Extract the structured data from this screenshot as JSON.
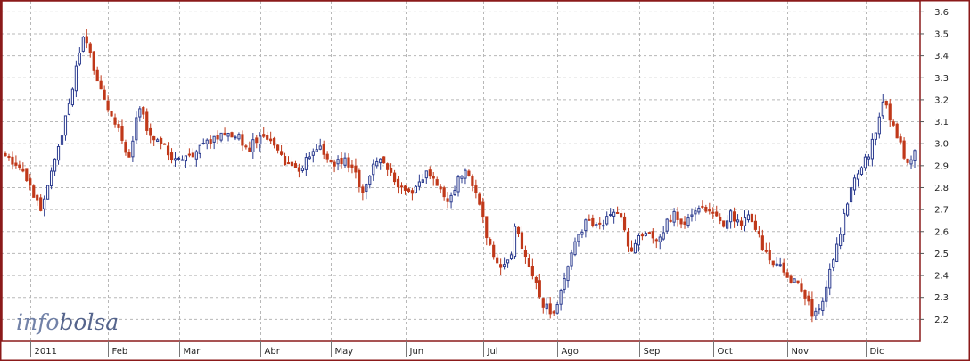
{
  "chart_data": {
    "type": "candlestick",
    "title": "",
    "xlabel": "",
    "ylabel": "",
    "ylim": [
      2.1,
      3.65
    ],
    "y_ticks": [
      2.2,
      2.3,
      2.4,
      2.5,
      2.6,
      2.7,
      2.8,
      2.9,
      3.0,
      3.1,
      3.2,
      3.3,
      3.4,
      3.5,
      3.6
    ],
    "y_tick_labels": [
      "2.2",
      "2.3",
      "2.4",
      "2.5",
      "2.6",
      "2.7",
      "2.8",
      "2.9",
      "3.0",
      "3.1",
      "3.2",
      "3.3",
      "3.4",
      "3.5",
      "3.6"
    ],
    "x_labels": [
      "2011",
      "Feb",
      "Mar",
      "Abr",
      "May",
      "Jun",
      "Jul",
      "Ago",
      "Sep",
      "Oct",
      "Nov",
      "Dic"
    ],
    "grid": true,
    "watermark": {
      "prefix": "info",
      "suffix": "bolsa"
    },
    "colors": {
      "up": "#2b3b8f",
      "down": "#c0391a",
      "frame": "#8b1a1a",
      "grid": "#b8b8b8"
    },
    "close_path": [
      [
        0,
        2.95
      ],
      [
        4,
        2.86
      ],
      [
        8,
        2.7
      ],
      [
        11,
        2.95
      ],
      [
        13,
        3.1
      ],
      [
        15,
        3.3
      ],
      [
        17,
        3.5
      ],
      [
        19,
        3.36
      ],
      [
        21,
        3.22
      ],
      [
        23,
        3.12
      ],
      [
        25,
        3.05
      ],
      [
        27,
        2.93
      ],
      [
        29,
        3.2
      ],
      [
        31,
        3.05
      ],
      [
        33,
        3.02
      ],
      [
        36,
        2.95
      ],
      [
        38,
        2.91
      ],
      [
        41,
        2.96
      ],
      [
        44,
        3.0
      ],
      [
        47,
        3.05
      ],
      [
        50,
        3.04
      ],
      [
        53,
        2.98
      ],
      [
        56,
        3.05
      ],
      [
        58,
        3.0
      ],
      [
        61,
        2.92
      ],
      [
        63,
        2.87
      ],
      [
        66,
        2.93
      ],
      [
        69,
        2.98
      ],
      [
        71,
        2.91
      ],
      [
        74,
        2.92
      ],
      [
        76,
        2.87
      ],
      [
        78,
        2.76
      ],
      [
        80,
        2.9
      ],
      [
        82,
        2.94
      ],
      [
        84,
        2.85
      ],
      [
        86,
        2.8
      ],
      [
        88,
        2.77
      ],
      [
        90,
        2.82
      ],
      [
        92,
        2.87
      ],
      [
        94,
        2.82
      ],
      [
        96,
        2.73
      ],
      [
        98,
        2.8
      ],
      [
        100,
        2.9
      ],
      [
        102,
        2.8
      ],
      [
        104,
        2.65
      ],
      [
        106,
        2.5
      ],
      [
        108,
        2.43
      ],
      [
        110,
        2.48
      ],
      [
        111,
        2.65
      ],
      [
        113,
        2.5
      ],
      [
        115,
        2.4
      ],
      [
        117,
        2.28
      ],
      [
        119,
        2.22
      ],
      [
        121,
        2.32
      ],
      [
        123,
        2.5
      ],
      [
        125,
        2.6
      ],
      [
        127,
        2.65
      ],
      [
        129,
        2.63
      ],
      [
        131,
        2.66
      ],
      [
        133,
        2.7
      ],
      [
        135,
        2.62
      ],
      [
        136,
        2.5
      ],
      [
        138,
        2.58
      ],
      [
        140,
        2.6
      ],
      [
        142,
        2.55
      ],
      [
        144,
        2.65
      ],
      [
        146,
        2.68
      ],
      [
        148,
        2.62
      ],
      [
        150,
        2.7
      ],
      [
        152,
        2.72
      ],
      [
        154,
        2.68
      ],
      [
        156,
        2.63
      ],
      [
        158,
        2.68
      ],
      [
        160,
        2.62
      ],
      [
        162,
        2.68
      ],
      [
        164,
        2.58
      ],
      [
        166,
        2.48
      ],
      [
        168,
        2.45
      ],
      [
        170,
        2.4
      ],
      [
        172,
        2.37
      ],
      [
        174,
        2.3
      ],
      [
        176,
        2.22
      ],
      [
        178,
        2.3
      ],
      [
        180,
        2.45
      ],
      [
        182,
        2.62
      ],
      [
        184,
        2.8
      ],
      [
        186,
        2.88
      ],
      [
        188,
        2.95
      ],
      [
        190,
        3.1
      ],
      [
        191,
        3.2
      ],
      [
        193,
        3.1
      ],
      [
        195,
        3.0
      ],
      [
        196,
        2.92
      ],
      [
        198,
        2.95
      ]
    ],
    "month_start_days": [
      0,
      22,
      42,
      65,
      85,
      106,
      128,
      149,
      172,
      193,
      214,
      236
    ],
    "total_days": 258,
    "seed": 2011
  }
}
